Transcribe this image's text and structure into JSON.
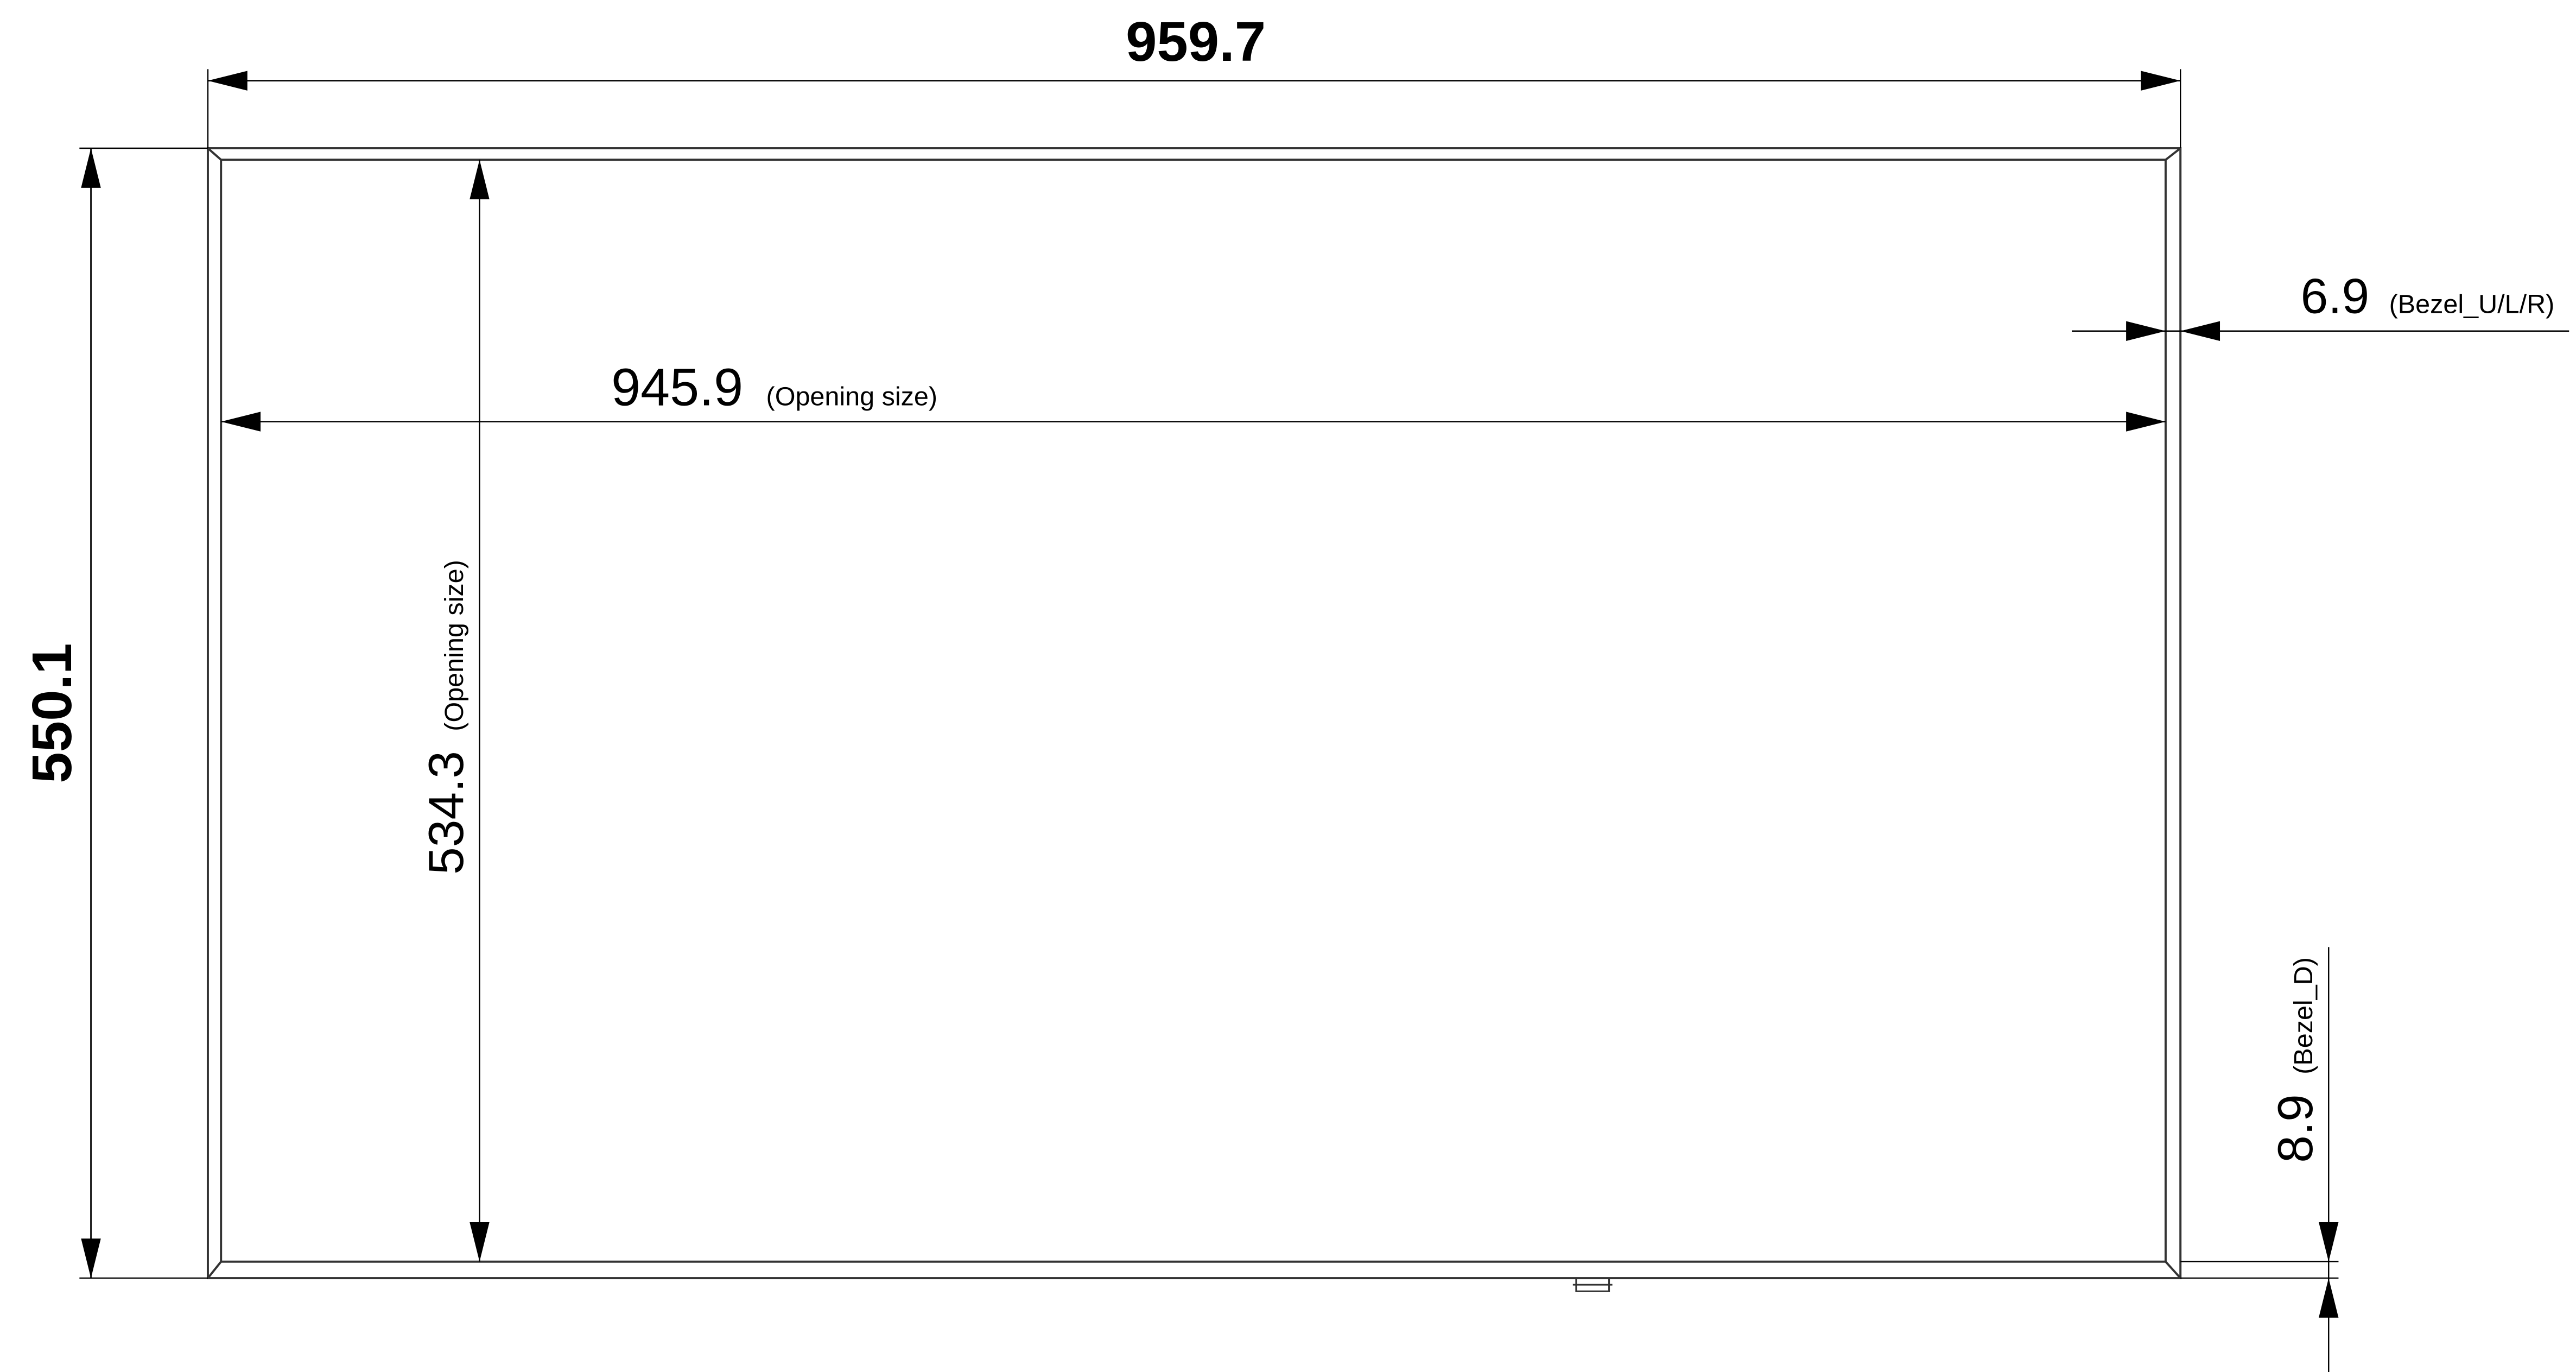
{
  "drawing": {
    "overall_width": {
      "value": "959.7"
    },
    "overall_height": {
      "value": "550.1"
    },
    "opening_width": {
      "value": "945.9",
      "note": "(Opening size)"
    },
    "opening_height": {
      "value": "534.3",
      "note": "(Opening size)"
    },
    "bezel_side": {
      "value": "6.9",
      "note": "(Bezel_U/L/R)"
    },
    "bezel_bottom": {
      "value": "8.9",
      "note": "(Bezel_D)"
    },
    "colors": {
      "line": "#000000",
      "frame": "#333333",
      "background": "#ffffff"
    }
  }
}
